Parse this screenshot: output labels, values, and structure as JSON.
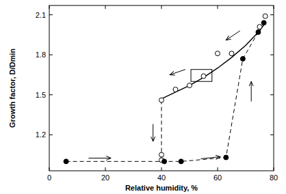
{
  "chart_data": {
    "type": "scatter",
    "x_label": "Relative humidity, %",
    "y_label": "Growth factor, D/Dmin",
    "xlim": [
      0,
      80
    ],
    "ylim": [
      0.93,
      2.17
    ],
    "xticks": [
      0,
      20,
      40,
      60,
      80
    ],
    "yticks": [
      1.2,
      1.5,
      1.8,
      2.1
    ],
    "grid": false,
    "series": [
      {
        "type": "scatter",
        "color": "#000000",
        "marker": "open-circle",
        "line_style": "none",
        "x": [
          77,
          75,
          65,
          60,
          55,
          50,
          45,
          40,
          40,
          40
        ],
        "values": [
          2.09,
          2.01,
          1.81,
          1.81,
          1.64,
          1.57,
          1.54,
          1.46,
          1.05,
          1.01
        ]
      },
      {
        "type": "line",
        "color": "#000000",
        "marker": "filled-circle",
        "line_style": "dashed",
        "x": [
          6,
          41,
          47,
          63,
          69,
          74.5,
          76.5
        ],
        "values": [
          1.0,
          1.0,
          1.0,
          1.03,
          1.77,
          1.97,
          2.04
        ]
      },
      {
        "type": "line",
        "color": "#000000",
        "marker": "none",
        "line_style": "solid",
        "x": [
          40,
          45,
          50,
          55,
          60,
          65,
          70,
          75,
          77
        ],
        "values": [
          1.47,
          1.52,
          1.57,
          1.63,
          1.7,
          1.78,
          1.87,
          1.98,
          2.04
        ]
      },
      {
        "type": "line",
        "color": "#000000",
        "marker": "none",
        "line_style": "dashed",
        "x": [
          40,
          40
        ],
        "values": [
          1.46,
          1.0
        ]
      }
    ]
  }
}
